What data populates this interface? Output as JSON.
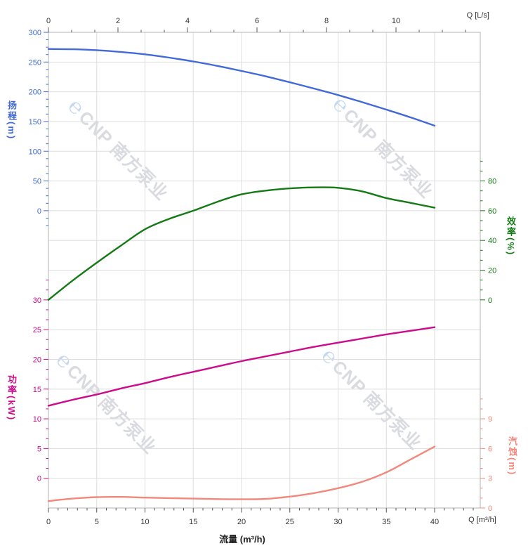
{
  "watermark": {
    "logo": "℮",
    "text": "CNP 南方泵业"
  },
  "colors": {
    "head": "#4169d8",
    "eff": "#157a15",
    "power": "#cc0d8a",
    "npsh": "#f2877b",
    "grid": "#dddddd",
    "frame": "#b3b3b3",
    "axis_text": "#333333",
    "watermark_text": "#d3d5db",
    "watermark_logo": "#b9d2ef"
  },
  "axes": {
    "top": {
      "title": "Q [L/s]",
      "major_ticks": [
        0,
        2,
        4,
        6,
        8,
        10
      ]
    },
    "bottom": {
      "title": "Q [m³/h]",
      "major_ticks": [
        0,
        5,
        10,
        15,
        20,
        25,
        30,
        35,
        40
      ]
    },
    "head": {
      "title": "扬程",
      "unit": "(m)",
      "label_full": "扬程(m)",
      "color": "#4169d8",
      "major_ticks": [
        300,
        250,
        200,
        150,
        100,
        50,
        0
      ]
    },
    "eff": {
      "title": "效率",
      "unit": "(%)",
      "label_full": "效率(%)",
      "color": "#157a15",
      "major_ticks": [
        80,
        60,
        40,
        20,
        0
      ]
    },
    "power": {
      "title": "功率",
      "unit": "(kW)",
      "label_full": "功率(kW)",
      "color": "#cc0d8a",
      "major_ticks": [
        30,
        25,
        20,
        15,
        10,
        5,
        0
      ]
    },
    "npsh": {
      "title": "汽蚀",
      "unit": "(m)",
      "label_full": "汽蚀(m)",
      "color": "#f2877b",
      "major_ticks": [
        9,
        6,
        3,
        0
      ]
    }
  },
  "chart_data": {
    "type": "line",
    "title": "",
    "x_label": "流量 (m³/h)",
    "x_unit": "m³/h",
    "grid": true,
    "top_axis": {
      "label": "Q [L/s]",
      "ticks": [
        0,
        2,
        4,
        6,
        8,
        10
      ],
      "lps_per_m3h": 0.2778
    },
    "x": [
      0,
      2.5,
      5,
      7.5,
      10,
      12.5,
      15,
      17.5,
      20,
      22.5,
      25,
      27.5,
      30,
      32.5,
      35,
      37.5,
      40
    ],
    "series": [
      {
        "name": "扬程",
        "unit": "m",
        "axis": "head",
        "color": "#4169d8",
        "axis_range": [
          0,
          300
        ],
        "values": [
          272,
          271.5,
          270,
          267,
          263,
          257.5,
          251,
          243.5,
          235,
          226,
          216,
          205.5,
          194.5,
          182.5,
          170,
          157,
          143
        ]
      },
      {
        "name": "效率",
        "unit": "%",
        "axis": "eff",
        "color": "#157a15",
        "axis_range": [
          0,
          80
        ],
        "values": [
          0,
          13,
          25,
          36.5,
          47.5,
          54.5,
          60,
          66,
          71,
          73.5,
          75,
          75.7,
          75.4,
          73,
          68.5,
          65.3,
          62
        ]
      },
      {
        "name": "功率",
        "unit": "kW",
        "axis": "power",
        "color": "#cc0d8a",
        "axis_range": [
          0,
          30
        ],
        "values": [
          12.2,
          13.2,
          14.1,
          15.1,
          16,
          17,
          17.9,
          18.8,
          19.7,
          20.5,
          21.3,
          22.1,
          22.8,
          23.5,
          24.2,
          24.8,
          25.4
        ]
      },
      {
        "name": "汽蚀",
        "unit": "m",
        "axis": "npsh",
        "color": "#f2877b",
        "axis_range": [
          0,
          9
        ],
        "values": [
          0.7,
          0.95,
          1.1,
          1.12,
          1.05,
          1,
          0.95,
          0.9,
          0.88,
          0.92,
          1.15,
          1.5,
          2,
          2.65,
          3.6,
          4.9,
          6.2
        ]
      }
    ]
  }
}
